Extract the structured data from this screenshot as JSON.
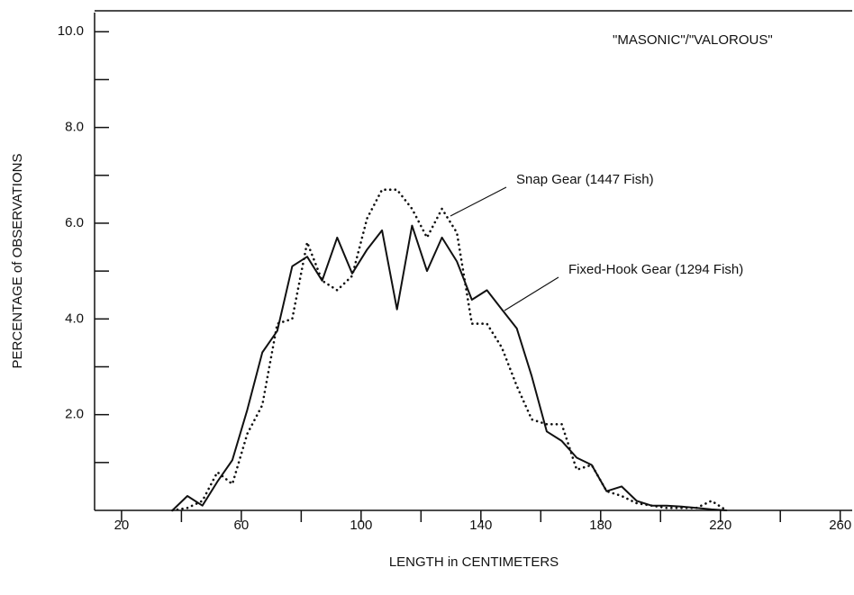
{
  "chart_data": {
    "type": "line",
    "xlabel": "LENGTH in CENTIMETERS",
    "ylabel": "PERCENTAGE of OBSERVATIONS",
    "annotation": "\"MASONIC\"/\"VALOROUS\"",
    "xlim": [
      11,
      264
    ],
    "ylim": [
      0,
      10.4
    ],
    "xticks": [
      20,
      60,
      100,
      140,
      180,
      220,
      260
    ],
    "xminor": [
      40,
      80,
      120,
      160,
      200,
      240
    ],
    "yticks": [
      {
        "value": 2,
        "label": "2.0"
      },
      {
        "value": 4,
        "label": "4.0"
      },
      {
        "value": 6,
        "label": "6.0"
      },
      {
        "value": 8,
        "label": "8.0"
      },
      {
        "value": 10,
        "label": "10.0"
      }
    ],
    "yminor": [
      1,
      3,
      5,
      7,
      9
    ],
    "x": [
      37,
      42,
      47,
      52,
      57,
      62,
      67,
      72,
      77,
      82,
      87,
      92,
      97,
      102,
      107,
      112,
      117,
      122,
      127,
      132,
      137,
      142,
      147,
      152,
      157,
      162,
      167,
      172,
      177,
      182,
      187,
      192,
      197,
      202,
      207,
      212,
      217,
      222
    ],
    "series": [
      {
        "name": "Snap Gear (1447 Fish)",
        "color": "#111111",
        "style": "dotted",
        "values": [
          0,
          0.05,
          0.2,
          0.8,
          0.55,
          1.6,
          2.2,
          3.9,
          4.0,
          5.6,
          4.8,
          4.6,
          4.9,
          6.1,
          6.7,
          6.7,
          6.3,
          5.7,
          6.3,
          5.8,
          3.9,
          3.9,
          3.4,
          2.6,
          1.9,
          1.8,
          1.8,
          0.85,
          0.95,
          0.4,
          0.3,
          0.15,
          0.1,
          0.05,
          0.05,
          0.05,
          0.2,
          0
        ]
      },
      {
        "name": "Fixed-Hook Gear (1294 Fish)",
        "color": "#111111",
        "style": "solid",
        "values": [
          0,
          0.3,
          0.1,
          0.6,
          1.05,
          2.1,
          3.3,
          3.75,
          5.1,
          5.3,
          4.8,
          5.7,
          4.95,
          5.45,
          5.85,
          4.2,
          5.95,
          5.0,
          5.7,
          5.2,
          4.4,
          4.6,
          4.2,
          3.8,
          2.8,
          1.65,
          1.45,
          1.1,
          0.95,
          0.4,
          0.5,
          0.2,
          0.1,
          0.1,
          0.08,
          0.05,
          0.02,
          0
        ]
      }
    ]
  }
}
